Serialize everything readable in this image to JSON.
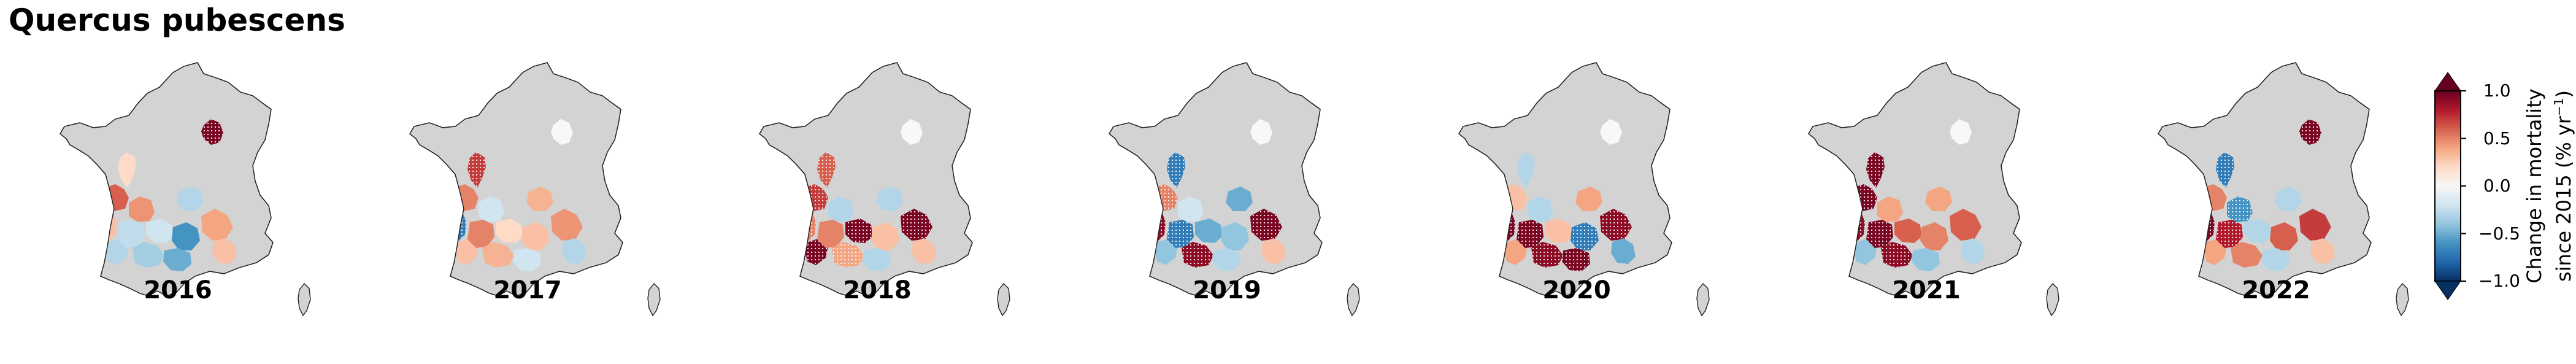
{
  "title": "Quercus pubescens",
  "colorbar": {
    "label_line1": "Change in mortality",
    "label_line2": "since 2015 (% yr",
    "label_sup": "−1",
    "label_close": ")",
    "ticks": [
      "1.0",
      "0.5",
      "0.0",
      "−0.5",
      "−1.0"
    ],
    "tick_values": [
      1.0,
      0.5,
      0.0,
      -0.5,
      -1.0
    ],
    "range": [
      -1.0,
      1.0
    ],
    "colormap": "RdBu_r",
    "colors": [
      "#053061",
      "#2166ac",
      "#4393c3",
      "#92c5de",
      "#d1e5f0",
      "#f7f7f7",
      "#fddbc7",
      "#f4a582",
      "#d6604d",
      "#b2182b",
      "#67001f"
    ],
    "extend": "both"
  },
  "map_style": {
    "land_color": "#d3d3d3",
    "outline_color": "#222222",
    "hatch_color": "#ffffff"
  },
  "panels": [
    {
      "year": "2016",
      "regions": [
        {
          "id": "cv",
          "value": 0.95,
          "hatched": true
        },
        {
          "id": "pc",
          "value": 0.2,
          "hatched": false
        },
        {
          "id": "ch",
          "value": 0.6,
          "hatched": false
        },
        {
          "id": "aq1",
          "value": 0.3,
          "hatched": false
        },
        {
          "id": "aq2",
          "value": -0.3,
          "hatched": false
        },
        {
          "id": "li",
          "value": 0.45,
          "hatched": false
        },
        {
          "id": "mp1",
          "value": -0.25,
          "hatched": false
        },
        {
          "id": "mp2",
          "value": -0.35,
          "hatched": false
        },
        {
          "id": "mp3",
          "value": -0.2,
          "hatched": false
        },
        {
          "id": "lr1",
          "value": -0.6,
          "hatched": false
        },
        {
          "id": "lr2",
          "value": -0.5,
          "hatched": false
        },
        {
          "id": "pv1",
          "value": 0.4,
          "hatched": false
        },
        {
          "id": "pv2",
          "value": 0.3,
          "hatched": false
        },
        {
          "id": "rh",
          "value": -0.3,
          "hatched": false
        }
      ]
    },
    {
      "year": "2017",
      "regions": [
        {
          "id": "cv",
          "value": 0.0,
          "hatched": true
        },
        {
          "id": "pc",
          "value": 0.7,
          "hatched": true
        },
        {
          "id": "ch",
          "value": 0.5,
          "hatched": false
        },
        {
          "id": "aq1",
          "value": -0.7,
          "hatched": true
        },
        {
          "id": "aq2",
          "value": 0.3,
          "hatched": false
        },
        {
          "id": "li",
          "value": -0.2,
          "hatched": false
        },
        {
          "id": "mp1",
          "value": 0.5,
          "hatched": false
        },
        {
          "id": "mp2",
          "value": 0.35,
          "hatched": false
        },
        {
          "id": "mp3",
          "value": 0.2,
          "hatched": false
        },
        {
          "id": "lr1",
          "value": 0.3,
          "hatched": false
        },
        {
          "id": "lr2",
          "value": -0.2,
          "hatched": false
        },
        {
          "id": "pv1",
          "value": 0.45,
          "hatched": false
        },
        {
          "id": "pv2",
          "value": -0.3,
          "hatched": false
        },
        {
          "id": "rh",
          "value": 0.35,
          "hatched": false
        }
      ]
    },
    {
      "year": "2018",
      "regions": [
        {
          "id": "cv",
          "value": 0.0,
          "hatched": true
        },
        {
          "id": "pc",
          "value": 0.6,
          "hatched": true
        },
        {
          "id": "ch",
          "value": 0.7,
          "hatched": true
        },
        {
          "id": "aq1",
          "value": 0.5,
          "hatched": true
        },
        {
          "id": "aq2",
          "value": 0.95,
          "hatched": true
        },
        {
          "id": "li",
          "value": -0.3,
          "hatched": false
        },
        {
          "id": "mp1",
          "value": 0.5,
          "hatched": false
        },
        {
          "id": "mp2",
          "value": 0.4,
          "hatched": true
        },
        {
          "id": "mp3",
          "value": 0.95,
          "hatched": true
        },
        {
          "id": "lr1",
          "value": 0.3,
          "hatched": false
        },
        {
          "id": "lr2",
          "value": -0.3,
          "hatched": false
        },
        {
          "id": "pv1",
          "value": 0.95,
          "hatched": true
        },
        {
          "id": "pv2",
          "value": 0.3,
          "hatched": false
        },
        {
          "id": "rh",
          "value": -0.3,
          "hatched": false
        }
      ]
    },
    {
      "year": "2019",
      "regions": [
        {
          "id": "cv",
          "value": 0.0,
          "hatched": true
        },
        {
          "id": "pc",
          "value": -0.7,
          "hatched": true
        },
        {
          "id": "ch",
          "value": 0.5,
          "hatched": true
        },
        {
          "id": "aq1",
          "value": 0.9,
          "hatched": true
        },
        {
          "id": "aq2",
          "value": -0.4,
          "hatched": false
        },
        {
          "id": "li",
          "value": -0.2,
          "hatched": false
        },
        {
          "id": "mp1",
          "value": -0.7,
          "hatched": true
        },
        {
          "id": "mp2",
          "value": 0.9,
          "hatched": true
        },
        {
          "id": "mp3",
          "value": -0.5,
          "hatched": false
        },
        {
          "id": "lr1",
          "value": -0.4,
          "hatched": false
        },
        {
          "id": "lr2",
          "value": -0.3,
          "hatched": false
        },
        {
          "id": "pv1",
          "value": 0.95,
          "hatched": true
        },
        {
          "id": "pv2",
          "value": 0.3,
          "hatched": false
        },
        {
          "id": "rh",
          "value": -0.5,
          "hatched": false
        }
      ]
    },
    {
      "year": "2020",
      "regions": [
        {
          "id": "cv",
          "value": 0.0,
          "hatched": true
        },
        {
          "id": "pc",
          "value": -0.3,
          "hatched": false
        },
        {
          "id": "ch",
          "value": 0.3,
          "hatched": false
        },
        {
          "id": "aq1",
          "value": 0.95,
          "hatched": true
        },
        {
          "id": "aq2",
          "value": 0.4,
          "hatched": false
        },
        {
          "id": "li",
          "value": -0.3,
          "hatched": false
        },
        {
          "id": "mp1",
          "value": 0.95,
          "hatched": true
        },
        {
          "id": "mp2",
          "value": 0.9,
          "hatched": true
        },
        {
          "id": "mp3",
          "value": 0.3,
          "hatched": false
        },
        {
          "id": "lr1",
          "value": -0.7,
          "hatched": true
        },
        {
          "id": "lr2",
          "value": 0.95,
          "hatched": true
        },
        {
          "id": "pv1",
          "value": 0.9,
          "hatched": true
        },
        {
          "id": "pv2",
          "value": -0.5,
          "hatched": false
        },
        {
          "id": "rh",
          "value": 0.4,
          "hatched": false
        }
      ]
    },
    {
      "year": "2021",
      "regions": [
        {
          "id": "cv",
          "value": 0.0,
          "hatched": true
        },
        {
          "id": "pc",
          "value": 0.95,
          "hatched": true
        },
        {
          "id": "ch",
          "value": 0.95,
          "hatched": true
        },
        {
          "id": "aq1",
          "value": 0.9,
          "hatched": true
        },
        {
          "id": "aq2",
          "value": -0.4,
          "hatched": false
        },
        {
          "id": "li",
          "value": 0.4,
          "hatched": false
        },
        {
          "id": "mp1",
          "value": 0.95,
          "hatched": true
        },
        {
          "id": "mp2",
          "value": 0.9,
          "hatched": true
        },
        {
          "id": "mp3",
          "value": 0.6,
          "hatched": false
        },
        {
          "id": "lr1",
          "value": 0.5,
          "hatched": false
        },
        {
          "id": "lr2",
          "value": -0.4,
          "hatched": false
        },
        {
          "id": "pv1",
          "value": 0.6,
          "hatched": false
        },
        {
          "id": "pv2",
          "value": -0.3,
          "hatched": false
        },
        {
          "id": "rh",
          "value": 0.4,
          "hatched": false
        }
      ]
    },
    {
      "year": "2022",
      "regions": [
        {
          "id": "cv",
          "value": 0.95,
          "hatched": true
        },
        {
          "id": "pc",
          "value": -0.7,
          "hatched": true
        },
        {
          "id": "ch",
          "value": 0.5,
          "hatched": false
        },
        {
          "id": "aq1",
          "value": 0.95,
          "hatched": true
        },
        {
          "id": "aq2",
          "value": 0.4,
          "hatched": false
        },
        {
          "id": "li",
          "value": -0.6,
          "hatched": true
        },
        {
          "id": "mp1",
          "value": 0.8,
          "hatched": true
        },
        {
          "id": "mp2",
          "value": 0.5,
          "hatched": false
        },
        {
          "id": "mp3",
          "value": -0.3,
          "hatched": false
        },
        {
          "id": "lr1",
          "value": 0.6,
          "hatched": false
        },
        {
          "id": "lr2",
          "value": -0.3,
          "hatched": false
        },
        {
          "id": "pv1",
          "value": 0.7,
          "hatched": false
        },
        {
          "id": "pv2",
          "value": 0.3,
          "hatched": false
        },
        {
          "id": "rh",
          "value": -0.3,
          "hatched": false
        }
      ]
    }
  ]
}
